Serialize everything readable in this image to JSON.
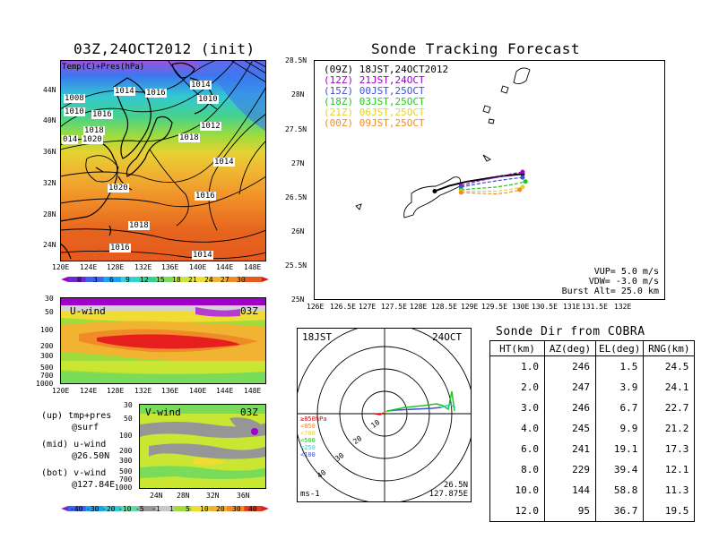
{
  "left_title": "03Z,24OCT2012 (init)",
  "right_title": "Sonde Tracking Forecast",
  "map_panel": {
    "label": "Temp(C)+Pres(hPa)",
    "x_ticks": [
      "120E",
      "124E",
      "128E",
      "132E",
      "136E",
      "140E",
      "144E",
      "148E"
    ],
    "y_ticks": [
      "44N",
      "40N",
      "36N",
      "32N",
      "28N",
      "24N"
    ],
    "isobar_labels": [
      "1014",
      "1014",
      "1016",
      "1008",
      "1010",
      "1016",
      "1010",
      "1012",
      "014",
      "1018",
      "1020",
      "1018",
      "1014",
      "1020",
      "1016",
      "1018",
      "1016",
      "1014"
    ],
    "colorbar": [
      "0",
      "3",
      "6",
      "9",
      "12",
      "15",
      "18",
      "21",
      "24",
      "27",
      "30"
    ],
    "colorbar_colors": [
      "#a000c8",
      "#6e28d2",
      "#3c64f0",
      "#1ea0f0",
      "#32d2d2",
      "#32d296",
      "#78dc5a",
      "#c8e632",
      "#f0dc32",
      "#f0b432",
      "#f08c28",
      "#e65a1e",
      "#d21e1e"
    ]
  },
  "uwind_panel": {
    "label": "U-wind",
    "time": "03Z",
    "y_ticks": [
      "30",
      "50",
      "100",
      "200",
      "300",
      "500",
      "700",
      "1000"
    ],
    "x_ticks": [
      "120E",
      "124E",
      "128E",
      "132E",
      "136E",
      "140E",
      "144E",
      "148E"
    ]
  },
  "vwind_panel": {
    "label": "V-wind",
    "time": "03Z",
    "y_ticks": [
      "30",
      "50",
      "100",
      "200",
      "300",
      "500",
      "700",
      "1000"
    ],
    "x_ticks": [
      "24N",
      "28N",
      "32N",
      "36N"
    ],
    "colorbar": [
      "-40",
      "-30",
      "-20",
      "-10",
      "-5",
      "-1",
      "1",
      "5",
      "10",
      "20",
      "30",
      "40"
    ]
  },
  "notes": [
    {
      "line1": "(up) tmp+pres",
      "line2": "@surf"
    },
    {
      "line1": "(mid) u-wind",
      "line2": "@26.50N"
    },
    {
      "line1": "(bot) v-wind",
      "line2": "@127.84E"
    }
  ],
  "chart_data": {
    "type": "line",
    "x_ticks": [
      "126E",
      "126.5E",
      "127E",
      "127.5E",
      "128E",
      "128.5E",
      "129E",
      "129.5E",
      "130E",
      "130.5E",
      "131E",
      "131.5E",
      "132E"
    ],
    "y_ticks": [
      "28.5N",
      "28N",
      "27.5N",
      "27N",
      "26.5N",
      "26N",
      "25.5N",
      "25N"
    ],
    "xlim": [
      126,
      132
    ],
    "ylim": [
      25,
      28.5
    ],
    "legend": [
      {
        "utc": "(09Z)",
        "jst": "18JST,24OCT2012",
        "color": "#000000"
      },
      {
        "utc": "(12Z)",
        "jst": "21JST,24OCT",
        "color": "#a000c8"
      },
      {
        "utc": "(15Z)",
        "jst": "00JST,25OCT",
        "color": "#3c50dc"
      },
      {
        "utc": "(18Z)",
        "jst": "03JST,25OCT",
        "color": "#1ec81e"
      },
      {
        "utc": "(21Z)",
        "jst": "06JST,25OCT",
        "color": "#e6d228"
      },
      {
        "utc": "(00Z)",
        "jst": "09JST,25OCT",
        "color": "#f08c28"
      }
    ],
    "series": [
      {
        "x": [
          128.05,
          128.3,
          128.6,
          128.9,
          129.2,
          129.55
        ],
        "y": [
          26.6,
          26.68,
          26.74,
          26.78,
          26.82,
          26.85
        ],
        "color": "#000000"
      },
      {
        "x": [
          128.5,
          128.8,
          129.1,
          129.35,
          129.55
        ],
        "y": [
          26.68,
          26.75,
          26.8,
          26.85,
          26.88
        ],
        "color": "#a000c8"
      },
      {
        "x": [
          128.5,
          128.8,
          129.1,
          129.35,
          129.55
        ],
        "y": [
          26.66,
          26.71,
          26.75,
          26.78,
          26.8
        ],
        "color": "#3c50dc"
      },
      {
        "x": [
          128.5,
          128.8,
          129.1,
          129.4,
          129.6
        ],
        "y": [
          26.62,
          26.64,
          26.66,
          26.7,
          26.74
        ],
        "color": "#1ec81e"
      },
      {
        "x": [
          128.5,
          128.8,
          129.1,
          129.3,
          129.55
        ],
        "y": [
          26.6,
          26.6,
          26.6,
          26.62,
          26.66
        ],
        "color": "#e6d228"
      },
      {
        "x": [
          128.5,
          128.8,
          129.1,
          129.3,
          129.5
        ],
        "y": [
          26.58,
          26.57,
          26.56,
          26.58,
          26.62
        ],
        "color": "#f08c28"
      }
    ],
    "params": {
      "vup": "VUP= 5.0 m/s",
      "vdw": "VDW= -3.0 m/s",
      "burst": "Burst Alt= 25.0 km"
    }
  },
  "polar": {
    "time": "18JST",
    "date": "24OCT",
    "ring_labels": [
      "10",
      "20",
      "30",
      "40"
    ],
    "legend": [
      {
        "text": "≥850hPa",
        "color": "#e60000"
      },
      {
        "text": "<850",
        "color": "#f08c28"
      },
      {
        "text": "<700",
        "color": "#e6d228"
      },
      {
        "text": "<500",
        "color": "#1ec81e"
      },
      {
        "text": "<250",
        "color": "#32c8c8"
      },
      {
        "text": "<100",
        "color": "#3c50dc"
      }
    ],
    "unit": "ms-1",
    "lat": "26.5N",
    "lon": "127.875E"
  },
  "table": {
    "title": "Sonde Dir from COBRA",
    "headers": [
      "HT(km)",
      "AZ(deg)",
      "EL(deg)",
      "RNG(km)"
    ],
    "rows": [
      [
        "1.0",
        "246",
        "1.5",
        "24.5"
      ],
      [
        "2.0",
        "247",
        "3.9",
        "24.1"
      ],
      [
        "3.0",
        "246",
        "6.7",
        "22.7"
      ],
      [
        "4.0",
        "245",
        "9.9",
        "21.2"
      ],
      [
        "6.0",
        "241",
        "19.1",
        "17.3"
      ],
      [
        "8.0",
        "229",
        "39.4",
        "12.1"
      ],
      [
        "10.0",
        "144",
        "58.8",
        "11.3"
      ],
      [
        "12.0",
        "95",
        "36.7",
        "19.5"
      ]
    ]
  }
}
